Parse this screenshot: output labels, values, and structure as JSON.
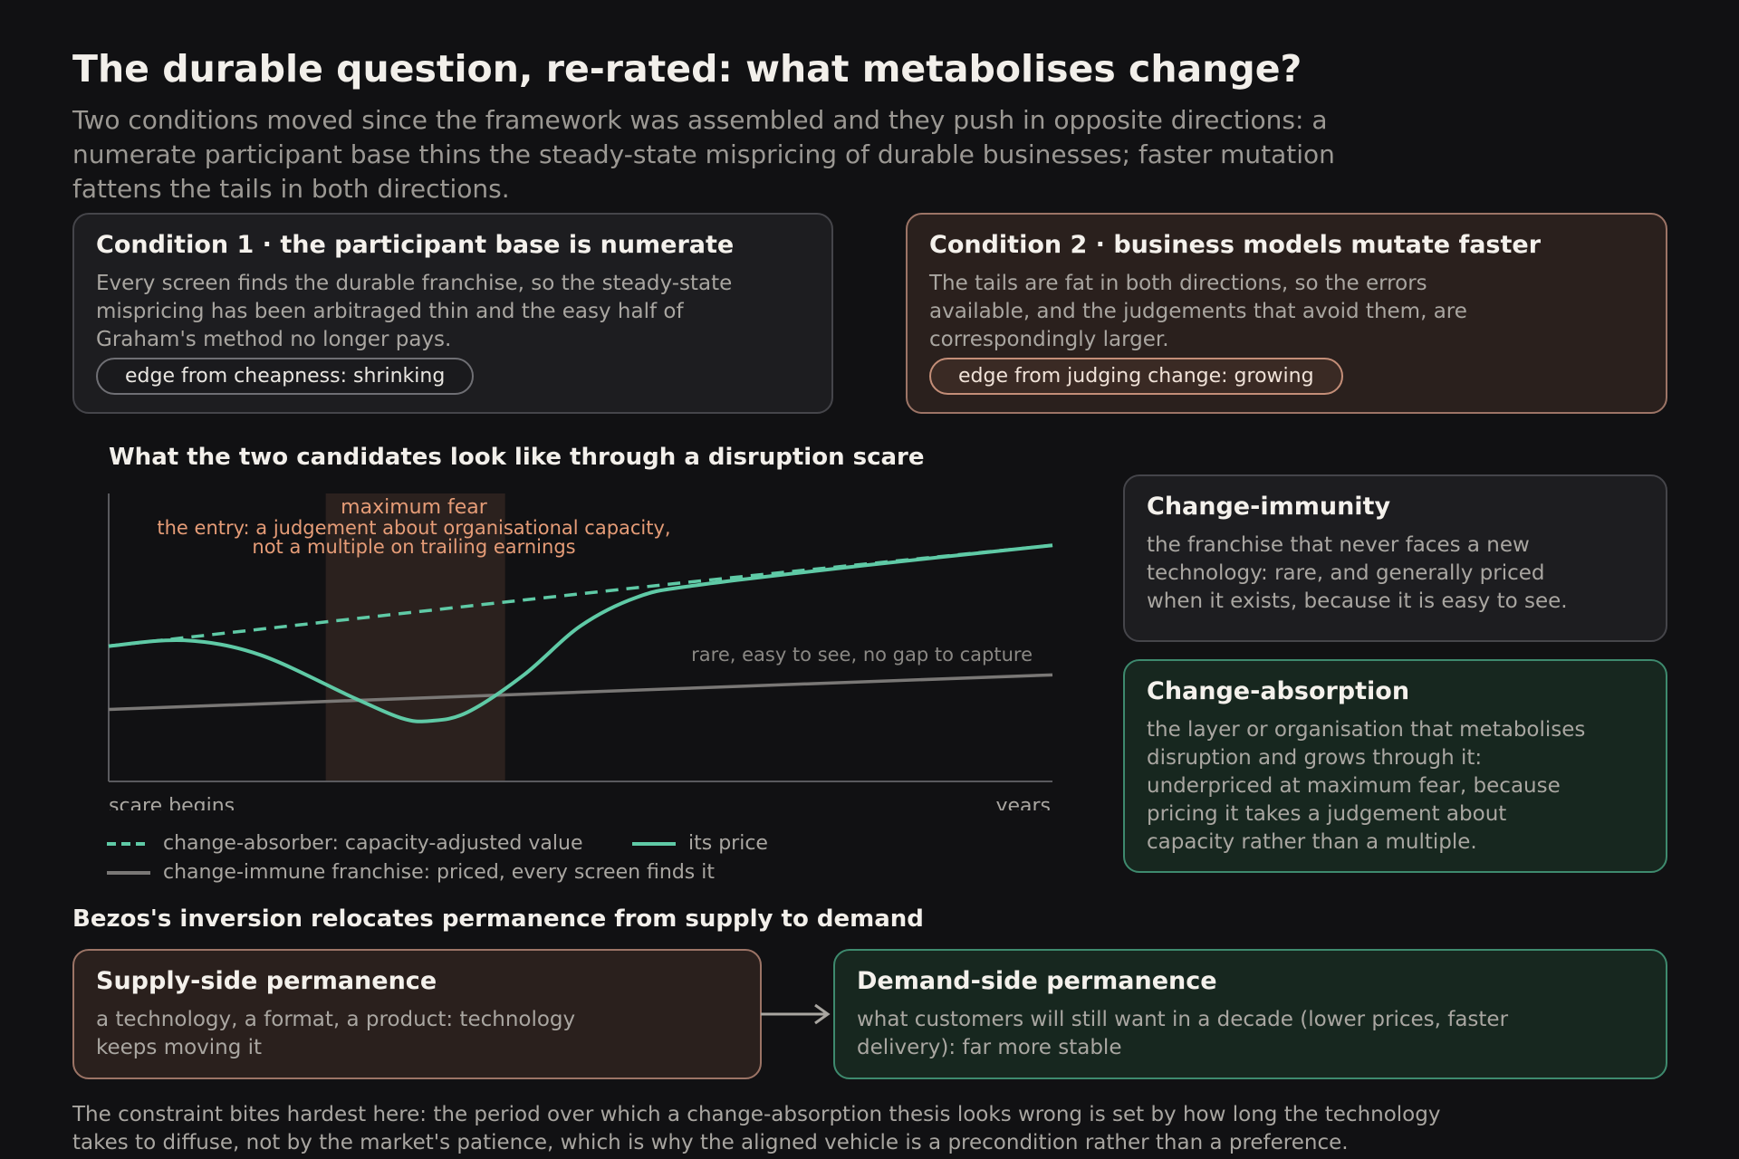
{
  "title": "The durable question, re-rated: what metabolises change?",
  "subtitle": "Two conditions moved since the framework was assembled and they push in opposite directions: a numerate participant base thins the steady-state mispricing of durable businesses; faster mutation fattens the tails in both directions.",
  "condition1": {
    "title": "Condition 1 · the participant base is numerate",
    "body": "Every screen finds the durable franchise, so the steady-state mispricing has been arbitraged thin and the easy half of Graham's method no longer pays.",
    "pill": "edge from cheapness: shrinking"
  },
  "condition2": {
    "title": "Condition 2 · business models mutate faster",
    "body": "The tails are fat in both directions, so the errors available, and the judgements that avoid them, are correspondingly larger.",
    "pill": "edge from judging change: growing"
  },
  "chart": {
    "heading": "What the two candidates look like through a disruption scare",
    "fear_label": "maximum fear",
    "entry_line1": "the entry: a judgement about organisational capacity,",
    "entry_line2": "not a multiple on trailing earnings",
    "immune_annotation": "rare, easy to see, no gap to capture",
    "x_start_label": "scare begins",
    "x_end_label": "years",
    "legend": {
      "value": "change-absorber: capacity-adjusted value",
      "price": "its price",
      "immune": "change-immune franchise: priced, every screen finds it"
    },
    "colors": {
      "absorber": "#5fcaa6",
      "immune": "#7a7876",
      "fear_band": "#2b211e",
      "annotation": "#e59c77"
    }
  },
  "chart_data": {
    "type": "line",
    "x_range": [
      0,
      1
    ],
    "y_range": [
      0,
      1
    ],
    "series": [
      {
        "style": "dashed",
        "points": [
          [
            0,
            0.47
          ],
          [
            0.58,
            0.68
          ],
          [
            1,
            0.82
          ]
        ]
      },
      {
        "style": "solid",
        "points": [
          [
            0,
            0.47
          ],
          [
            0.08,
            0.49
          ],
          [
            0.16,
            0.44
          ],
          [
            0.26,
            0.29
          ],
          [
            0.31,
            0.22
          ],
          [
            0.34,
            0.21
          ],
          [
            0.38,
            0.24
          ],
          [
            0.44,
            0.37
          ],
          [
            0.5,
            0.54
          ],
          [
            0.56,
            0.64
          ],
          [
            0.62,
            0.68
          ],
          [
            0.8,
            0.75
          ],
          [
            1,
            0.82
          ]
        ]
      },
      {
        "style": "solid",
        "points": [
          [
            0,
            0.25
          ],
          [
            1,
            0.37
          ]
        ]
      }
    ],
    "shaded_region": [
      0.23,
      0.42
    ]
  },
  "immunity": {
    "title": "Change-immunity",
    "body": "the franchise that never faces a new technology: rare, and generally priced when it exists, because it is easy to see."
  },
  "absorption": {
    "title": "Change-absorption",
    "body": "the layer or organisation that metabolises disruption and grows through it: underpriced at maximum fear, because pricing it takes a judgement about capacity rather than a multiple."
  },
  "inversion": {
    "heading": "Bezos's inversion relocates permanence from supply to demand",
    "supply": {
      "title": "Supply-side permanence",
      "body": "a technology, a format, a product: technology keeps moving it"
    },
    "demand": {
      "title": "Demand-side permanence",
      "body": "what customers will still want in a decade (lower prices, faster delivery): far more stable"
    }
  },
  "footer": "The constraint bites hardest here: the period over which a change-absorption thesis looks wrong is set by how long the technology takes to diffuse, not by the market's patience, which is why the aligned vehicle is a precondition rather than a preference."
}
